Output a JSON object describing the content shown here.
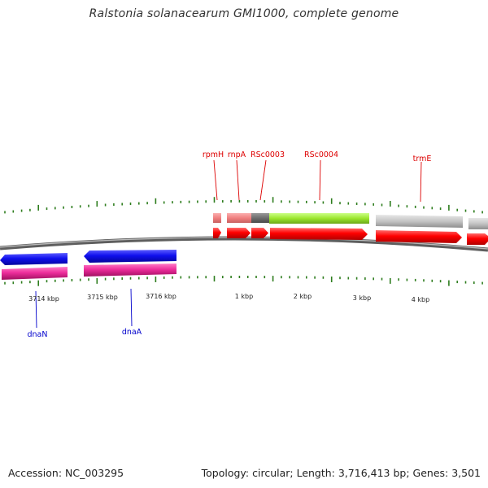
{
  "header": {
    "title": "Ralstonia solanacearum GMI1000, complete genome"
  },
  "footer": {
    "accession": "Accession: NC_003295",
    "summary": "Topology: circular; Length: 3,716,413 bp; Genes: 3,501"
  },
  "colors": {
    "forward_label": "#dd0000",
    "reverse_label": "#0000cc",
    "tick": "#2e7d1e",
    "backbone": "#7d7d7d",
    "cds_forward": "#f20000",
    "cds_reverse": "#1515e6",
    "rrna_reverse": "#ee2d9c"
  },
  "position_labels": [
    {
      "id": "pos-3714",
      "text": "3714 kbp"
    },
    {
      "id": "pos-3715",
      "text": "3715 kbp"
    },
    {
      "id": "pos-3716",
      "text": "3716 kbp"
    },
    {
      "id": "pos-1",
      "text": "1 kbp"
    },
    {
      "id": "pos-2",
      "text": "2 kbp"
    },
    {
      "id": "pos-3",
      "text": "3 kbp"
    },
    {
      "id": "pos-4",
      "text": "4 kbp"
    }
  ],
  "forward_genes": [
    {
      "name": "rpmH",
      "color": "#f08080"
    },
    {
      "name": "rnpA",
      "color": "#f08080"
    },
    {
      "name": "RSc0003",
      "color": "#6e6e6e"
    },
    {
      "name": "RSc0004",
      "color": "#9be62e"
    },
    {
      "name": "trmE",
      "color": "#c4c4c4"
    }
  ],
  "reverse_genes": [
    {
      "name": "dnaN",
      "color": "#1515e6"
    },
    {
      "name": "dnaA",
      "color": "#1515e6"
    }
  ]
}
